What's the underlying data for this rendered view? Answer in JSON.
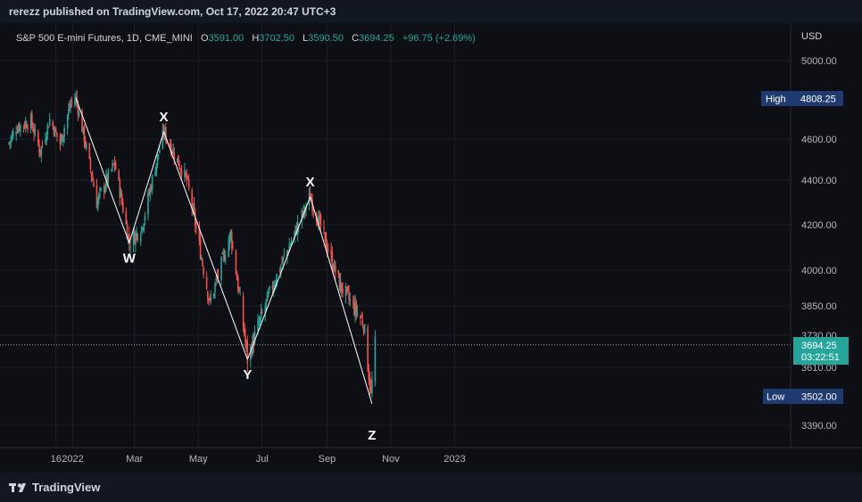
{
  "publisher_line": "rerezz published on TradingView.com, Oct 17, 2022 20:47 UTC+3",
  "legend": {
    "symbol": "S&P 500 E-mini Futures, 1D, CME_MINI",
    "o_label": "O",
    "o_value": "3591.00",
    "h_label": "H",
    "h_value": "3702.50",
    "l_label": "L",
    "l_value": "3590.50",
    "c_label": "C",
    "c_value": "3694.25",
    "change": "+96.75 (+2.69%)"
  },
  "currency": "USD",
  "brand": "TradingView",
  "colors": {
    "up": "#26a69a",
    "down": "#ef5350",
    "wave": "#ffffff",
    "tag": "#1e3a6e",
    "price_tag": "#26a69a"
  },
  "markers": {
    "high_label": "High",
    "high_value": "4808.25",
    "low_label": "Low",
    "low_value": "3502.00",
    "last_price": "3694.25",
    "countdown": "03:22:51"
  },
  "chart_data": {
    "type": "candlestick",
    "y_axis": {
      "ticks": [
        5000,
        4600,
        4400,
        4200,
        4000,
        3850,
        3730,
        3610,
        3390
      ],
      "range": [
        3290,
        5120
      ],
      "unit": "USD"
    },
    "x_axis": {
      "ticks": [
        "16",
        "2022",
        "Mar",
        "May",
        "Jul",
        "Sep",
        "Nov",
        "2023"
      ],
      "range": [
        "2021-11-01",
        "2023-01-25"
      ]
    },
    "price_points": [
      {
        "date": "2021-11-01",
        "close": 4580
      },
      {
        "date": "2021-11-08",
        "close": 4660
      },
      {
        "date": "2021-11-22",
        "close": 4690
      },
      {
        "date": "2021-12-01",
        "close": 4540
      },
      {
        "date": "2021-12-10",
        "close": 4700
      },
      {
        "date": "2021-12-20",
        "close": 4580
      },
      {
        "date": "2021-12-30",
        "close": 4780
      },
      {
        "date": "2022-01-04",
        "close": 4808.25
      },
      {
        "date": "2022-01-24",
        "close": 4300
      },
      {
        "date": "2022-02-10",
        "close": 4480
      },
      {
        "date": "2022-02-24",
        "close": 4120
      },
      {
        "date": "2022-03-08",
        "close": 4190
      },
      {
        "date": "2022-03-29",
        "close": 4637
      },
      {
        "date": "2022-04-20",
        "close": 4400
      },
      {
        "date": "2022-05-12",
        "close": 3860
      },
      {
        "date": "2022-06-01",
        "close": 4160
      },
      {
        "date": "2022-06-17",
        "close": 3640
      },
      {
        "date": "2022-07-08",
        "close": 3900
      },
      {
        "date": "2022-08-16",
        "close": 4325
      },
      {
        "date": "2022-09-13",
        "close": 3940
      },
      {
        "date": "2022-10-06",
        "close": 3780
      },
      {
        "date": "2022-10-13",
        "close": 3502
      },
      {
        "date": "2022-10-17",
        "close": 3694.25
      }
    ],
    "wave_labels": [
      {
        "label": "W",
        "date": "2022-02-24",
        "price": 4120
      },
      {
        "label": "X",
        "date": "2022-03-29",
        "price": 4637
      },
      {
        "label": "Y",
        "date": "2022-06-17",
        "price": 3640
      },
      {
        "label": "X",
        "date": "2022-08-16",
        "price": 4325
      },
      {
        "label": "Z",
        "date": "2022-10-14",
        "price": 3450
      }
    ]
  }
}
